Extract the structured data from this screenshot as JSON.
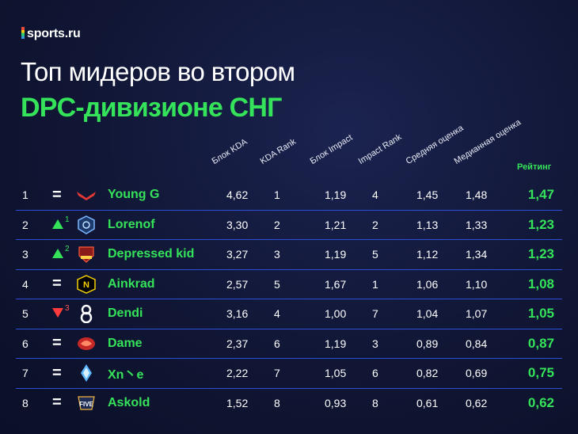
{
  "brand": "sports.ru",
  "title_line1": "Топ мидеров во втором",
  "title_line2": "DPC-дивизионе СНГ",
  "columns": {
    "kda": "Блок KDA",
    "kda_rank": "KDA Rank",
    "impact": "Блок Impact",
    "impact_rank": "Impact Rank",
    "avg": "Средняя оценка",
    "median": "Медианная оценка",
    "rating": "Рейтинг"
  },
  "rows": [
    {
      "pos": "1",
      "change": "same",
      "change_val": "",
      "name": "Young G",
      "kda": "4,62",
      "kda_rank": "1",
      "impact": "1,19",
      "impact_rank": "4",
      "avg": "1,45",
      "median": "1,48",
      "rating": "1,47",
      "team_icon": "red-chevron-logo"
    },
    {
      "pos": "2",
      "change": "up",
      "change_val": "1",
      "name": "Lorenof",
      "kda": "3,30",
      "kda_rank": "2",
      "impact": "1,21",
      "impact_rank": "2",
      "avg": "1,13",
      "median": "1,33",
      "rating": "1,23",
      "team_icon": "blue-shield-logo"
    },
    {
      "pos": "3",
      "change": "up",
      "change_val": "2",
      "name": "Depressed kid",
      "kda": "3,27",
      "kda_rank": "3",
      "impact": "1,19",
      "impact_rank": "5",
      "avg": "1,12",
      "median": "1,34",
      "rating": "1,23",
      "team_icon": "red-crest-logo"
    },
    {
      "pos": "4",
      "change": "same",
      "change_val": "",
      "name": "Ainkrad",
      "kda": "2,57",
      "kda_rank": "5",
      "impact": "1,67",
      "impact_rank": "1",
      "avg": "1,06",
      "median": "1,10",
      "rating": "1,08",
      "team_icon": "navi-logo"
    },
    {
      "pos": "5",
      "change": "down",
      "change_val": "3",
      "name": "Dendi",
      "kda": "3,16",
      "kda_rank": "4",
      "impact": "1,00",
      "impact_rank": "7",
      "avg": "1,04",
      "median": "1,07",
      "rating": "1,05",
      "team_icon": "b8-logo"
    },
    {
      "pos": "6",
      "change": "same",
      "change_val": "",
      "name": "Dame",
      "kda": "2,37",
      "kda_rank": "6",
      "impact": "1,19",
      "impact_rank": "3",
      "avg": "0,89",
      "median": "0,84",
      "rating": "0,87",
      "team_icon": "dragon-logo"
    },
    {
      "pos": "7",
      "change": "same",
      "change_val": "",
      "name": "Xn丶e",
      "kda": "2,22",
      "kda_rank": "7",
      "impact": "1,05",
      "impact_rank": "6",
      "avg": "0,82",
      "median": "0,69",
      "rating": "0,75",
      "team_icon": "ice-crystal-logo"
    },
    {
      "pos": "8",
      "change": "same",
      "change_val": "",
      "name": "Askold",
      "kda": "1,52",
      "kda_rank": "8",
      "impact": "0,93",
      "impact_rank": "8",
      "avg": "0,61",
      "median": "0,62",
      "rating": "0,62",
      "team_icon": "five-logo"
    }
  ],
  "colors": {
    "accent": "#35e35a",
    "down": "#ff3b3b",
    "divider": "#2d4fd8",
    "bg": "#101634"
  }
}
